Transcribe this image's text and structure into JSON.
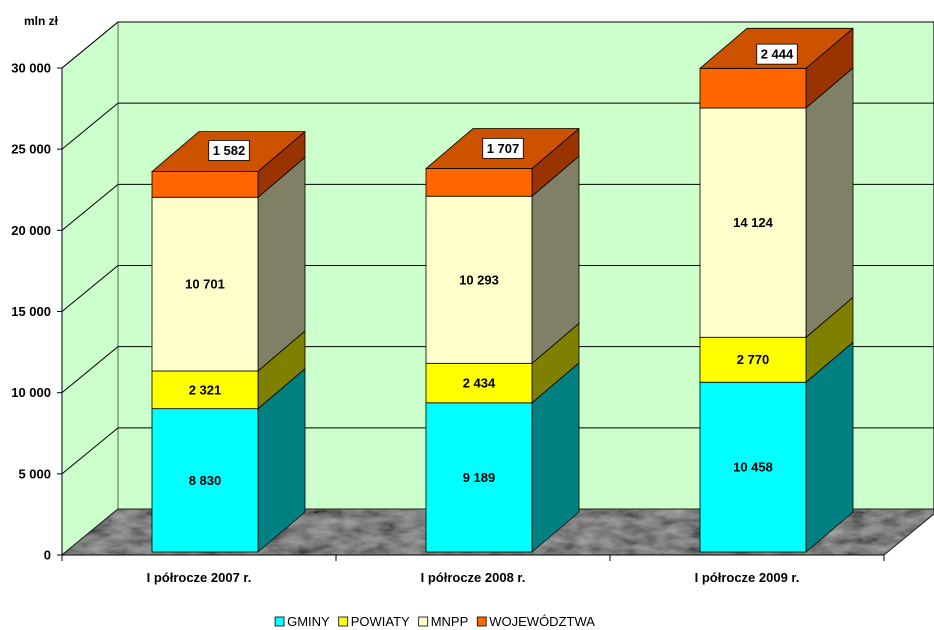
{
  "chart_data": {
    "type": "bar",
    "stacked": true,
    "three_d": true,
    "ylabel": "mln zł",
    "ylim": [
      0,
      30000
    ],
    "yticks": [
      {
        "value": 0,
        "label": "0"
      },
      {
        "value": 5000,
        "label": "5 000"
      },
      {
        "value": 10000,
        "label": "10 000"
      },
      {
        "value": 15000,
        "label": "15 000"
      },
      {
        "value": 20000,
        "label": "20 000"
      },
      {
        "value": 25000,
        "label": "25 000"
      },
      {
        "value": 30000,
        "label": "30 000"
      }
    ],
    "categories": [
      "I półrocze 2007 r.",
      "I półrocze 2008 r.",
      "I półrocze 2009 r."
    ],
    "series": [
      {
        "name": "GMINY",
        "color": "#00ffff",
        "side_color": "#008080",
        "values": [
          8830,
          9189,
          10458
        ],
        "data_labels": [
          "8 830",
          "9 189",
          "10 458"
        ]
      },
      {
        "name": "POWIATY",
        "color": "#ffff00",
        "side_color": "#808000",
        "values": [
          2321,
          2434,
          2770
        ],
        "data_labels": [
          "2 321",
          "2 434",
          "2 770"
        ]
      },
      {
        "name": "MNPP",
        "color": "#ffffcc",
        "side_color": "#808066",
        "values": [
          10701,
          10293,
          14124
        ],
        "data_labels": [
          "10 701",
          "10 293",
          "14 124"
        ]
      },
      {
        "name": "WOJEWÓDZTWA",
        "color": "#ff6600",
        "side_color": "#993300",
        "top_color": "#cc5200",
        "values": [
          1582,
          1707,
          2444
        ],
        "data_labels": [
          "1 582",
          "1 707",
          "2 444"
        ]
      }
    ],
    "legend": "bottom",
    "grid": true,
    "wall_color": "#ccffcc",
    "floor_color": "#3f3f3f"
  }
}
